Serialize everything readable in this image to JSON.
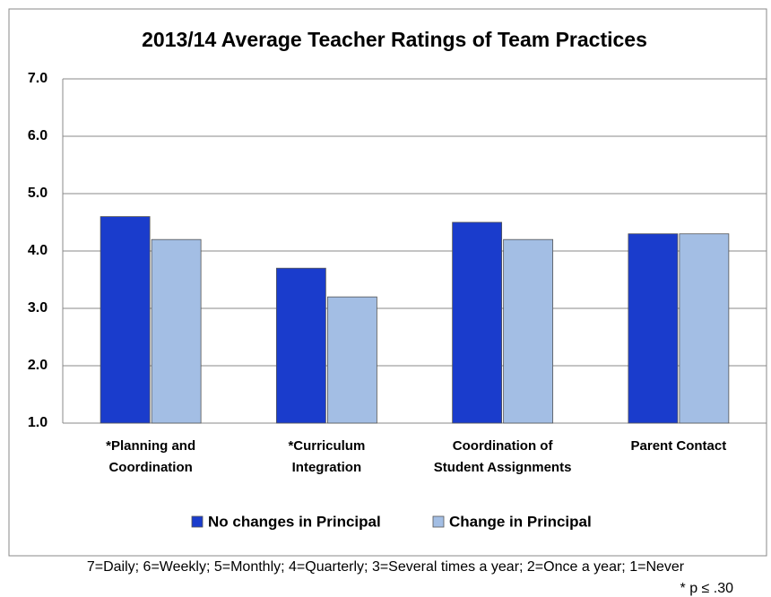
{
  "chart_data": {
    "type": "bar",
    "title": "2013/14 Average Teacher Ratings of Team Practices",
    "categories": [
      "*Planning and\nCoordination",
      "*Curriculum\nIntegration",
      "Coordination of\nStudent Assignments",
      "Parent Contact"
    ],
    "series": [
      {
        "name": "No changes in Principal",
        "color": "#1a3ccc",
        "values": [
          4.6,
          3.7,
          4.5,
          4.3
        ]
      },
      {
        "name": "Change in Principal",
        "color": "#a3bee4",
        "values": [
          4.2,
          3.2,
          4.2,
          4.3
        ]
      }
    ],
    "ylim": [
      1,
      7
    ],
    "yticks": [
      {
        "value": 1,
        "label": "1.0"
      },
      {
        "value": 2,
        "label": "2.0"
      },
      {
        "value": 3,
        "label": "3.0"
      },
      {
        "value": 4,
        "label": "4.0"
      },
      {
        "value": 5,
        "label": "5.0"
      },
      {
        "value": 6,
        "label": "6.0"
      },
      {
        "value": 7,
        "label": "7.0"
      }
    ],
    "grid": true,
    "legend": "bottom",
    "notes": [
      "7=Daily; 6=Weekly; 5=Monthly; 4=Quarterly; 3=Several times a year; 2=Once a year; 1=Never",
      "* p ≤ .30"
    ]
  }
}
